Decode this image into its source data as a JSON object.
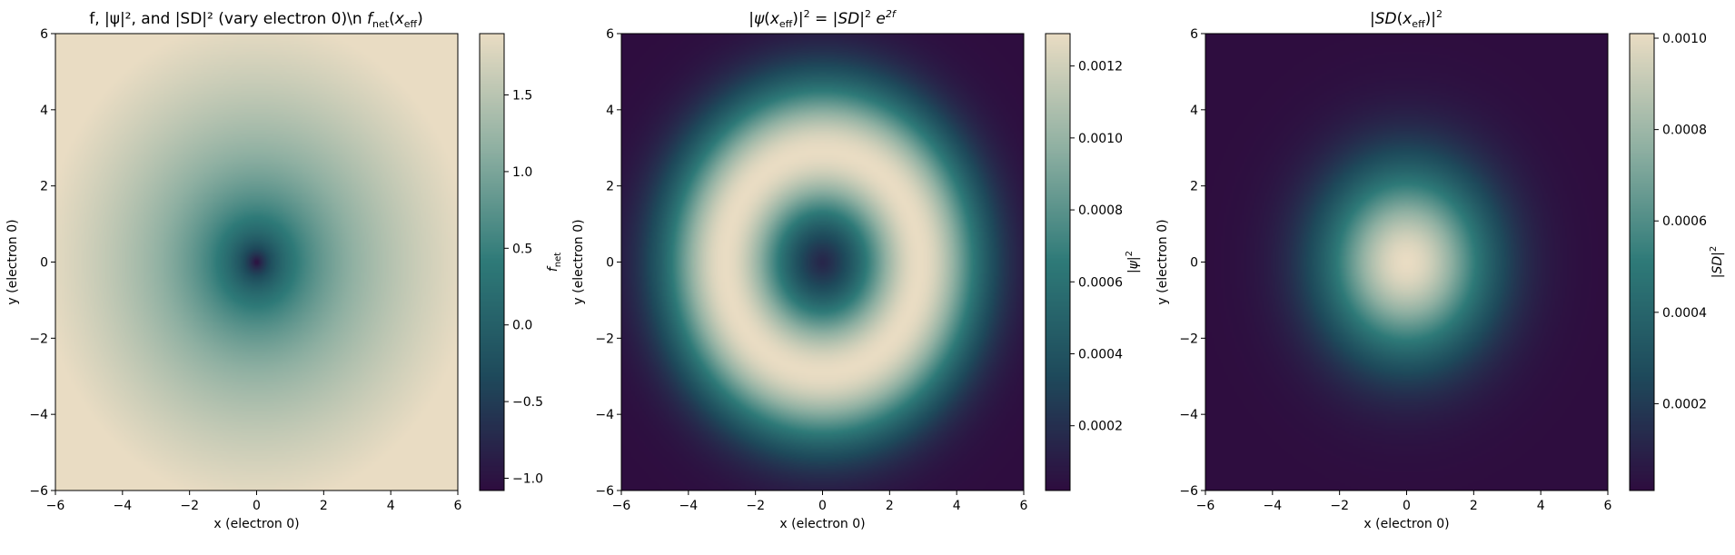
{
  "colormap": [
    "#2e0d3f",
    "#1e4a5b",
    "#2e7a78",
    "#8fb0a2",
    "#e9dcc3"
  ],
  "chart_data": [
    {
      "type": "heatmap",
      "title": "f, |ψ|², and |SD|² (vary electron 0)\\n f_net(x_eff)",
      "xlabel": "x (electron 0)",
      "ylabel": "y (electron 0)",
      "xlim": [
        -6,
        6
      ],
      "ylim": [
        -6,
        6
      ],
      "xticks": [
        -6,
        -4,
        -2,
        0,
        2,
        4,
        6
      ],
      "yticks": [
        -6,
        -4,
        -2,
        0,
        2,
        4,
        6
      ],
      "field": "log_radius",
      "clim": [
        -1.08,
        1.9
      ],
      "colorbar_label": "f_net",
      "colorbar_ticks": [
        -1.0,
        -0.5,
        0.0,
        0.5,
        1.0,
        1.5
      ],
      "colorbar_ticklabels": [
        "−1.0",
        "−0.5",
        "0.0",
        "0.5",
        "1.0",
        "1.5"
      ]
    },
    {
      "type": "heatmap",
      "title": "|ψ(x_eff)|² = |SD|² e^{2f}",
      "xlabel": "x (electron 0)",
      "ylabel": "y (electron 0)",
      "xlim": [
        -6,
        6
      ],
      "ylim": [
        -6,
        6
      ],
      "xticks": [
        -6,
        -4,
        -2,
        0,
        2,
        4,
        6
      ],
      "yticks": [
        -6,
        -4,
        -2,
        0,
        2,
        4,
        6
      ],
      "field": "ring",
      "ring_peak_radius": 2.9,
      "clim": [
        2e-05,
        0.00129
      ],
      "colorbar_label": "|ψ|²",
      "colorbar_ticks": [
        0.0002,
        0.0004,
        0.0006,
        0.0008,
        0.001,
        0.0012
      ],
      "colorbar_ticklabels": [
        "0.0002",
        "0.0004",
        "0.0006",
        "0.0008",
        "0.0010",
        "0.0012"
      ]
    },
    {
      "type": "heatmap",
      "title": "|SD(x_eff)|²",
      "xlabel": "x (electron 0)",
      "ylabel": "y (electron 0)",
      "xlim": [
        -6,
        6
      ],
      "ylim": [
        -6,
        6
      ],
      "xticks": [
        -6,
        -4,
        -2,
        0,
        2,
        4,
        6
      ],
      "yticks": [
        -6,
        -4,
        -2,
        0,
        2,
        4,
        6
      ],
      "field": "gaussian",
      "gaussian_sigma": 1.75,
      "clim": [
        1e-05,
        0.00101
      ],
      "colorbar_label": "|SD|²",
      "colorbar_ticks": [
        0.0002,
        0.0004,
        0.0006,
        0.0008,
        0.001
      ],
      "colorbar_ticklabels": [
        "0.0002",
        "0.0004",
        "0.0006",
        "0.0008",
        "0.0010"
      ]
    }
  ],
  "tick_labels": {
    "-6": "−6",
    "-4": "−4",
    "-2": "−2",
    "0": "0",
    "2": "2",
    "4": "4",
    "6": "6"
  }
}
